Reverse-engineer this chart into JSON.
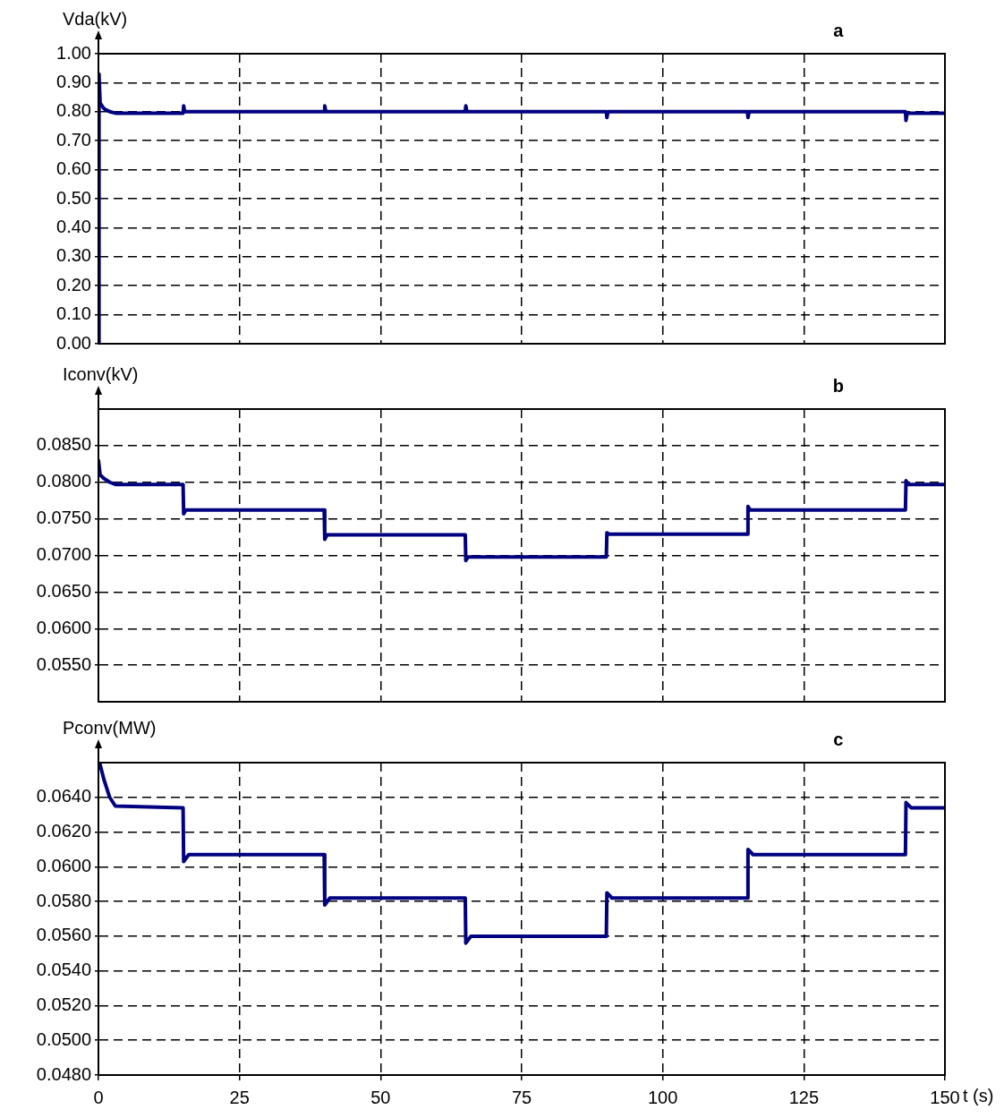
{
  "chart_data": [
    {
      "type": "line",
      "title": "a",
      "ylabel": "Vda(kV)",
      "xlim": [
        0,
        150
      ],
      "xticks": [
        0,
        25,
        50,
        75,
        100,
        125,
        150
      ],
      "ylim": [
        0,
        1
      ],
      "yticks": [
        {
          "value": 0,
          "label": "0.00"
        },
        {
          "value": 0.1,
          "label": "0.10"
        },
        {
          "value": 0.2,
          "label": "0.20"
        },
        {
          "value": 0.3,
          "label": "0.30"
        },
        {
          "value": 0.4,
          "label": "0.40"
        },
        {
          "value": 0.5,
          "label": "0.50"
        },
        {
          "value": 0.6,
          "label": "0.60"
        },
        {
          "value": 0.7,
          "label": "0.70"
        },
        {
          "value": 0.8,
          "label": "0.80"
        },
        {
          "value": 0.9,
          "label": "0.90"
        },
        {
          "value": 1,
          "label": "1.00"
        }
      ],
      "grid": true,
      "tick_labels": "y",
      "legend": false,
      "marker": "none",
      "line_style": "solid",
      "series": [
        {
          "color": "#000080",
          "x": [
            0,
            0.1,
            0.3,
            1,
            2,
            3,
            15,
            15.1,
            15.3,
            40,
            40.1,
            40.3,
            65,
            65.1,
            65.3,
            90,
            90.1,
            90.3,
            115,
            115.1,
            115.3,
            143,
            143.1,
            143.3,
            150
          ],
          "values": [
            0,
            0.93,
            0.83,
            0.81,
            0.8,
            0.795,
            0.795,
            0.82,
            0.8,
            0.8,
            0.82,
            0.8,
            0.8,
            0.82,
            0.8,
            0.8,
            0.78,
            0.8,
            0.8,
            0.78,
            0.8,
            0.8,
            0.77,
            0.795,
            0.795
          ]
        }
      ]
    },
    {
      "type": "line",
      "title": "b",
      "ylabel": "Iconv(kV)",
      "xlim": [
        0,
        150
      ],
      "xticks": [
        0,
        25,
        50,
        75,
        100,
        125,
        150
      ],
      "ylim": [
        0.05,
        0.09
      ],
      "yticks": [
        {
          "value": 0.055,
          "label": "0.0550"
        },
        {
          "value": 0.06,
          "label": "0.0600"
        },
        {
          "value": 0.065,
          "label": "0.0650"
        },
        {
          "value": 0.07,
          "label": "0.0700"
        },
        {
          "value": 0.075,
          "label": "0.0750"
        },
        {
          "value": 0.08,
          "label": "0.0800"
        },
        {
          "value": 0.085,
          "label": "0.0850"
        }
      ],
      "grid": true,
      "tick_labels": "y",
      "legend": false,
      "marker": "none",
      "line_style": "solid",
      "series": [
        {
          "color": "#000080",
          "x": [
            0,
            0.3,
            1,
            2,
            3,
            15,
            15.1,
            15.5,
            40,
            40.1,
            40.5,
            65,
            65.1,
            65.5,
            90,
            90.1,
            90.5,
            115,
            115.1,
            115.5,
            143,
            143.1,
            143.5,
            150
          ],
          "values": [
            0.083,
            0.081,
            0.0805,
            0.08,
            0.0797,
            0.0797,
            0.0757,
            0.0762,
            0.0762,
            0.0722,
            0.0728,
            0.0728,
            0.0693,
            0.0698,
            0.0698,
            0.0731,
            0.0729,
            0.0729,
            0.0767,
            0.0762,
            0.0762,
            0.0802,
            0.0797,
            0.0797
          ]
        }
      ]
    },
    {
      "type": "line",
      "title": "c",
      "ylabel": "Pconv(MW)",
      "xlabel": "t (s)",
      "xlim": [
        0,
        150
      ],
      "xticks": [
        0,
        25,
        50,
        75,
        100,
        125,
        150
      ],
      "ylim": [
        0.048,
        0.066
      ],
      "yticks": [
        {
          "value": 0.048,
          "label": "0.0480"
        },
        {
          "value": 0.05,
          "label": "0.0500"
        },
        {
          "value": 0.052,
          "label": "0.0520"
        },
        {
          "value": 0.054,
          "label": "0.0540"
        },
        {
          "value": 0.056,
          "label": "0.0560"
        },
        {
          "value": 0.058,
          "label": "0.0580"
        },
        {
          "value": 0.06,
          "label": "0.0600"
        },
        {
          "value": 0.062,
          "label": "0.0620"
        },
        {
          "value": 0.064,
          "label": "0.0640"
        }
      ],
      "grid": true,
      "legend": false,
      "marker": "none",
      "line_style": "solid",
      "series": [
        {
          "color": "#000080",
          "x": [
            0.2,
            1,
            2,
            3,
            15,
            15.1,
            16,
            40,
            40.1,
            41,
            65,
            65.1,
            66,
            90,
            90.1,
            91,
            115,
            115.1,
            116,
            143,
            143.1,
            144,
            150
          ],
          "values": [
            0.066,
            0.065,
            0.064,
            0.0635,
            0.0634,
            0.0603,
            0.0607,
            0.0607,
            0.0578,
            0.0582,
            0.0582,
            0.0556,
            0.056,
            0.056,
            0.0585,
            0.0582,
            0.0582,
            0.061,
            0.0607,
            0.0607,
            0.0637,
            0.0634,
            0.0634
          ]
        }
      ]
    }
  ]
}
